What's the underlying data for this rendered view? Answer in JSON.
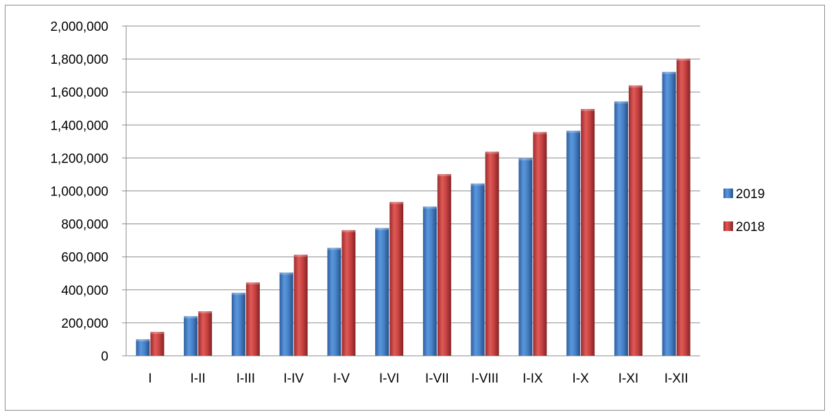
{
  "chart_data": {
    "type": "bar",
    "categories": [
      "I",
      "I-II",
      "I-III",
      "I-IV",
      "I-V",
      "I-VI",
      "I-VII",
      "I-VIII",
      "I-IX",
      "I-X",
      "I-XI",
      "I-XII"
    ],
    "series": [
      {
        "name": "2019",
        "color": "#3f79c2",
        "values": [
          100000,
          240000,
          382000,
          505000,
          655000,
          775000,
          905000,
          1045000,
          1198000,
          1365000,
          1543000,
          1722000
        ]
      },
      {
        "name": "2018",
        "color": "#c0393a",
        "values": [
          145000,
          270000,
          445000,
          613000,
          762000,
          933000,
          1102000,
          1238000,
          1357000,
          1497000,
          1640000,
          1802000
        ]
      }
    ],
    "ylim": [
      0,
      2000000
    ],
    "yticks": [
      0,
      200000,
      400000,
      600000,
      800000,
      1000000,
      1200000,
      1400000,
      1600000,
      1800000,
      2000000
    ],
    "ytick_labels": [
      "0",
      "200,000",
      "400,000",
      "600,000",
      "800,000",
      "1,000,000",
      "1,200,000",
      "1,400,000",
      "1,600,000",
      "1,800,000",
      "2,000,000"
    ],
    "grid": true,
    "legend_position": "right"
  }
}
